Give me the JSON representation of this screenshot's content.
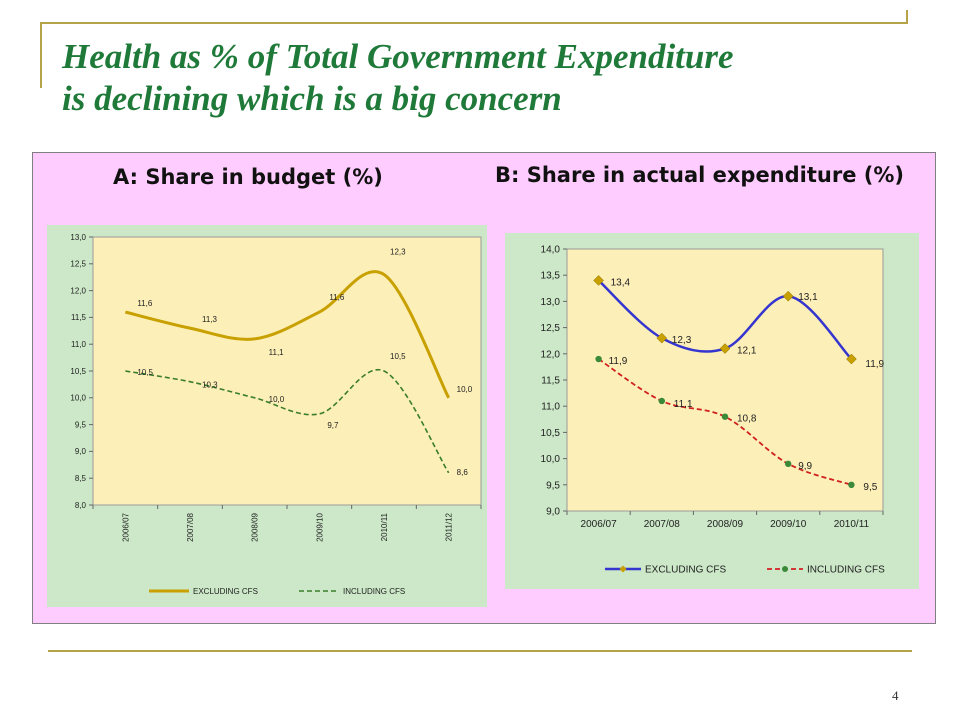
{
  "slide": {
    "title_line1": "Health as % of Total Government Expenditure",
    "title_line2": "is declining which is a big concern",
    "page_number": "4"
  },
  "colors": {
    "title": "#1f7a3a",
    "panel_background": "#ffccff",
    "chart_area": "#cce8c8",
    "plot_area": "#fdefb8",
    "chart_a_excluding": "#c8a000",
    "chart_a_including": "#3a7d2a",
    "chart_b_excluding": "#3535d0",
    "chart_b_including": "#d02020",
    "marker_diamond": "#c8a000",
    "marker_circle": "#3a8a3a"
  },
  "chart_data": [
    {
      "type": "line",
      "title": "A: Share in budget (%)",
      "categories": [
        "2006/07",
        "2007/08",
        "2008/09",
        "2009/10",
        "2010/11",
        "2011/12"
      ],
      "series": [
        {
          "name": "EXCLUDING CFS",
          "values": [
            11.6,
            11.3,
            11.1,
            11.6,
            12.3,
            10.0
          ],
          "labels": [
            "11,6",
            "11,3",
            "11,1",
            "11,6",
            "12,3",
            "10,0"
          ]
        },
        {
          "name": "INCLUDING CFS",
          "values": [
            10.5,
            10.3,
            10.0,
            9.7,
            10.5,
            8.6
          ],
          "labels": [
            "10,5",
            "10,3",
            "10,0",
            "9,7",
            "10,5",
            "8,6"
          ]
        }
      ],
      "ylim": [
        8.0,
        13.0
      ],
      "ytick_labels": [
        "13,0",
        "12,5",
        "12,0",
        "11,5",
        "11,0",
        "10,5",
        "10,0",
        "9,5",
        "9,0",
        "8,5",
        "8,0"
      ],
      "smooth": true,
      "markers": false,
      "grid": false,
      "legend_position": "bottom"
    },
    {
      "type": "line",
      "title": "B: Share in actual expenditure (%)",
      "categories": [
        "2006/07",
        "2007/08",
        "2008/09",
        "2009/10",
        "2010/11"
      ],
      "series": [
        {
          "name": "EXCLUDING CFS",
          "values": [
            13.4,
            12.3,
            12.1,
            13.1,
            11.9
          ],
          "labels": [
            "13,4",
            "12,3",
            "12,1",
            "13,1",
            "11,9"
          ],
          "marker": "diamond"
        },
        {
          "name": "INCLUDING CFS",
          "values": [
            11.9,
            11.1,
            10.8,
            9.9,
            9.5
          ],
          "labels": [
            "11,9",
            "11,1",
            "10,8",
            "9,9",
            "9,5"
          ],
          "marker": "circle"
        }
      ],
      "ylim": [
        9.0,
        14.0
      ],
      "ytick_labels": [
        "14,0",
        "13,5",
        "13,0",
        "12,5",
        "12,0",
        "11,5",
        "11,0",
        "10,5",
        "10,0",
        "9,5",
        "9,0"
      ],
      "smooth": true,
      "markers": true,
      "grid": false,
      "legend_position": "bottom"
    }
  ]
}
